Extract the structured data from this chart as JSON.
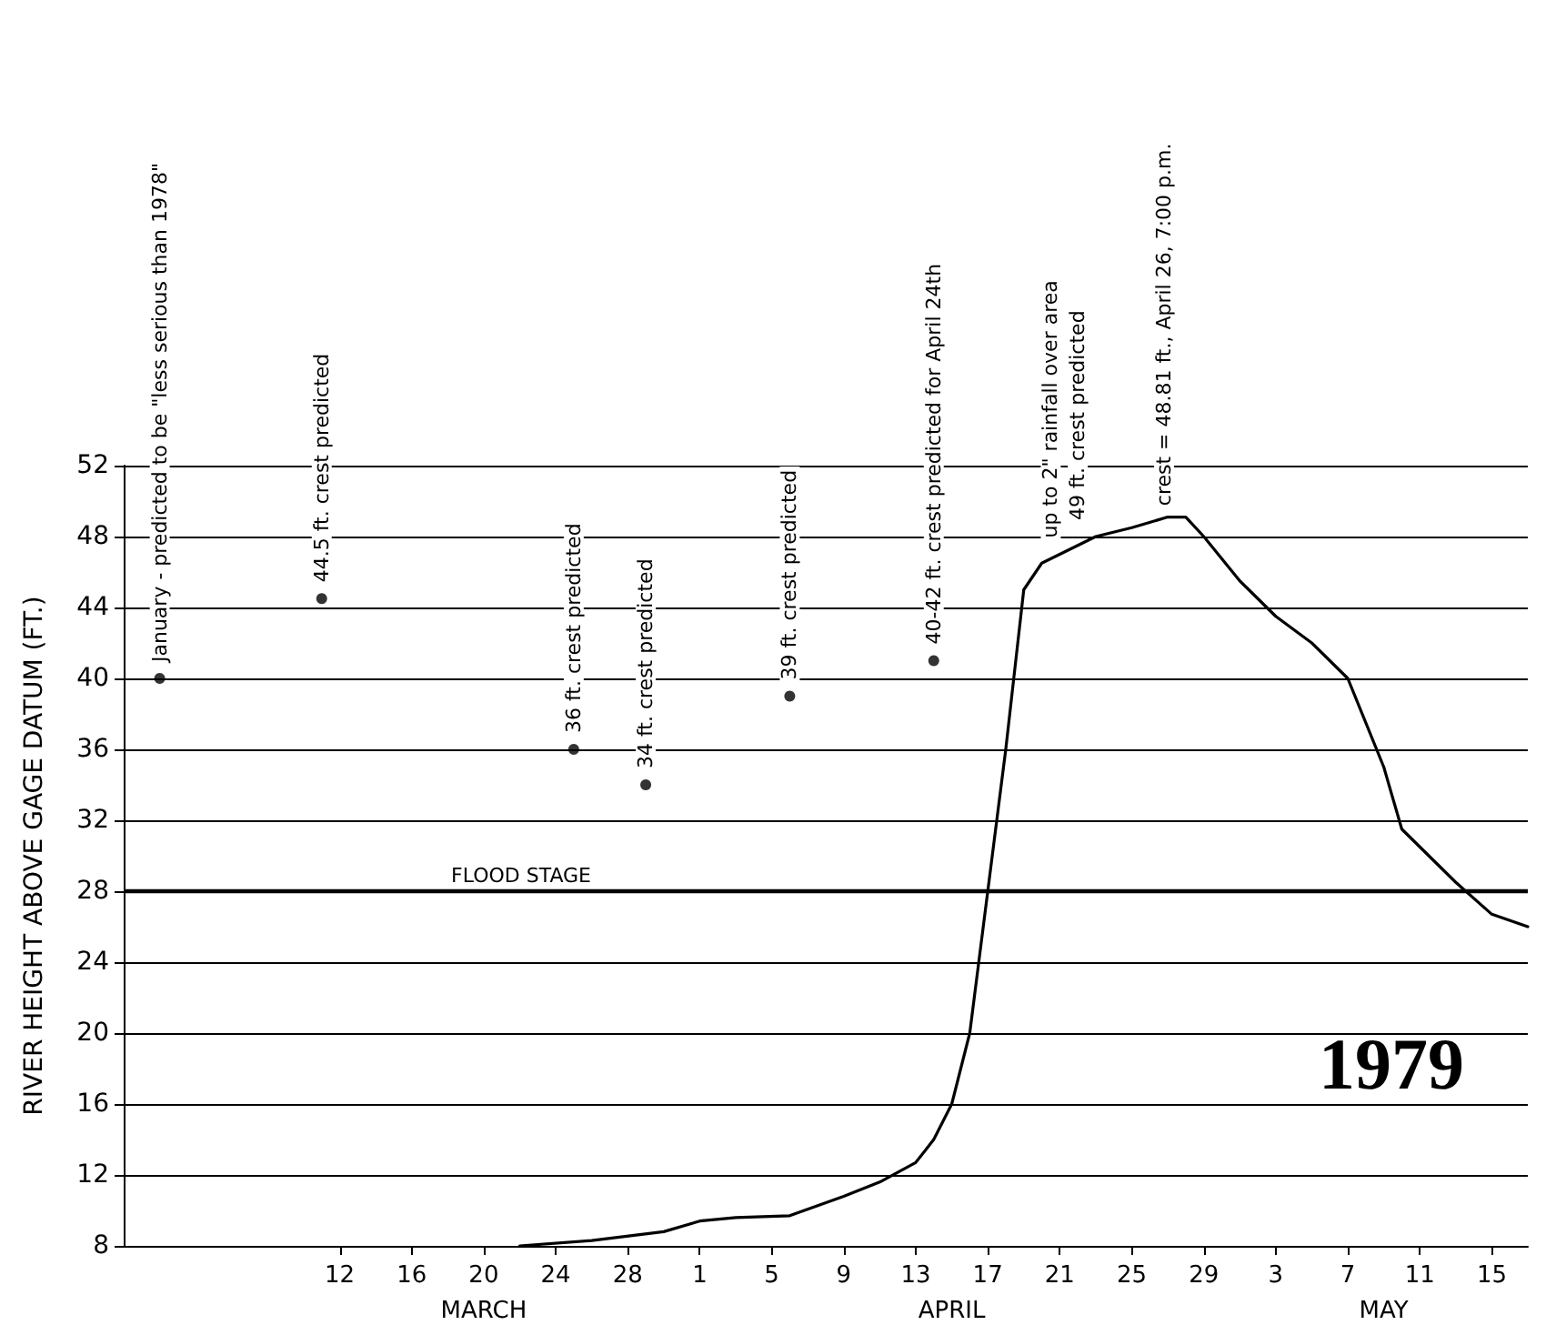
{
  "chart_data": {
    "type": "line",
    "title": "1979",
    "ylabel": "RIVER HEIGHT ABOVE GAGE DATUM (FT.)",
    "xlim": [
      "1979-02-28",
      "1979-05-17"
    ],
    "xticks": [
      {
        "value": "1979-03-12",
        "label": "12"
      },
      {
        "value": "1979-03-16",
        "label": "16"
      },
      {
        "value": "1979-03-20",
        "label": "20"
      },
      {
        "value": "1979-03-24",
        "label": "24"
      },
      {
        "value": "1979-03-28",
        "label": "28"
      },
      {
        "value": "1979-04-01",
        "label": "1"
      },
      {
        "value": "1979-04-05",
        "label": "5"
      },
      {
        "value": "1979-04-09",
        "label": "9"
      },
      {
        "value": "1979-04-13",
        "label": "13"
      },
      {
        "value": "1979-04-17",
        "label": "17"
      },
      {
        "value": "1979-04-21",
        "label": "21"
      },
      {
        "value": "1979-04-25",
        "label": "25"
      },
      {
        "value": "1979-04-29",
        "label": "29"
      },
      {
        "value": "1979-05-03",
        "label": "3"
      },
      {
        "value": "1979-05-07",
        "label": "7"
      },
      {
        "value": "1979-05-11",
        "label": "11"
      },
      {
        "value": "1979-05-15",
        "label": "15"
      }
    ],
    "ylim": [
      8,
      52
    ],
    "yticks": [
      8,
      12,
      16,
      20,
      24,
      28,
      32,
      36,
      40,
      44,
      48,
      52
    ],
    "grid": "y",
    "ref_lines": [
      {
        "axis": "y",
        "value": 28,
        "label": "FLOOD STAGE"
      }
    ],
    "series": [
      {
        "color": "#000000",
        "marker": "none",
        "line_style": "solid",
        "x": [
          "1979-03-22",
          "1979-03-26",
          "1979-03-30",
          "1979-04-01",
          "1979-04-03",
          "1979-04-06",
          "1979-04-09",
          "1979-04-11",
          "1979-04-13",
          "1979-04-14",
          "1979-04-15",
          "1979-04-16",
          "1979-04-17",
          "1979-04-18",
          "1979-04-19",
          "1979-04-20",
          "1979-04-21",
          "1979-04-23",
          "1979-04-25",
          "1979-04-27",
          "1979-04-28",
          "1979-04-29",
          "1979-05-01",
          "1979-05-03",
          "1979-05-05",
          "1979-05-07",
          "1979-05-09",
          "1979-05-10",
          "1979-05-11",
          "1979-05-13",
          "1979-05-15",
          "1979-05-17"
        ],
        "values": [
          8.0,
          8.3,
          8.8,
          9.4,
          9.6,
          9.7,
          10.8,
          11.6,
          12.7,
          14,
          16,
          20,
          28,
          36,
          45,
          46.5,
          47,
          48,
          48.5,
          49.1,
          49.1,
          48,
          45.5,
          43.5,
          42,
          40,
          35,
          31.5,
          30.5,
          28.5,
          26.7,
          26
        ]
      },
      {
        "type": "scatter",
        "color": "#000000",
        "marker": "circle",
        "x": [
          "1979-03-02",
          "1979-03-11",
          "1979-03-25",
          "1979-03-29",
          "1979-04-06",
          "1979-04-14"
        ],
        "values": [
          40,
          44.5,
          36,
          34,
          39,
          41
        ]
      }
    ],
    "annotations": [
      {
        "text": "January - predicted to be \"less serious than 1978\"",
        "x": "1979-03-02",
        "y": 40
      },
      {
        "text": "44.5 ft. crest predicted",
        "x": "1979-03-11",
        "y": 44.5
      },
      {
        "text": "36 ft. crest predicted",
        "x": "1979-03-25",
        "y": 36
      },
      {
        "text": "34 ft. crest predicted",
        "x": "1979-03-29",
        "y": 34
      },
      {
        "text": "39 ft. crest predicted",
        "x": "1979-04-06",
        "y": 39
      },
      {
        "text": "40-42 ft. crest predicted for April 24th",
        "x": "1979-04-14",
        "y": 41
      },
      {
        "text": "up to 2\" rainfall over area",
        "x": "1979-04-20T12:00",
        "y": 47
      },
      {
        "text": "49 ft. crest predicted",
        "x": "1979-04-22",
        "y": 48
      },
      {
        "text": "crest = 48.81 ft., April 26, 7:00 p.m.",
        "x": "1979-04-26T19:00",
        "y": 48.81
      },
      "MARCH",
      "APRIL",
      "MAY"
    ]
  }
}
